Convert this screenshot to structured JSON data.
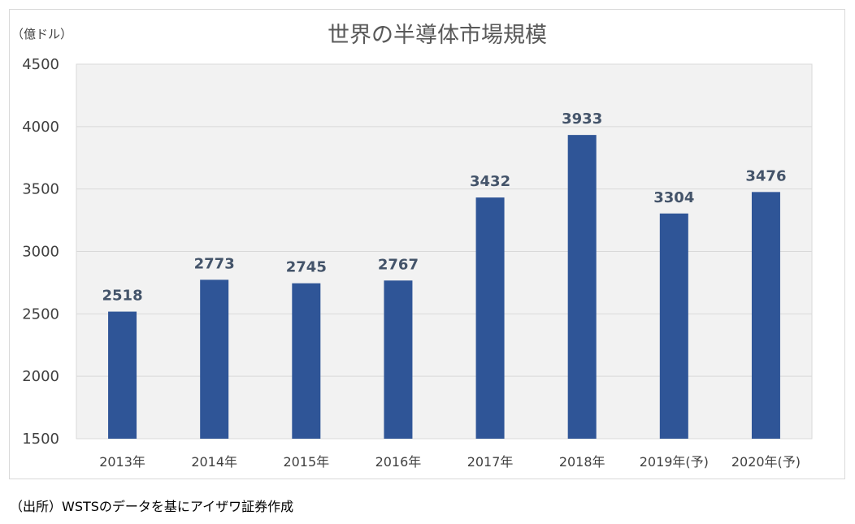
{
  "chart_data": {
    "type": "bar",
    "title": "世界の半導体市場規模",
    "unit_label": "（億ドル）",
    "categories": [
      "2013年",
      "2014年",
      "2015年",
      "2016年",
      "2017年",
      "2018年",
      "2019年(予)",
      "2020年(予)"
    ],
    "values": [
      2518,
      2773,
      2745,
      2767,
      3432,
      3933,
      3304,
      3476
    ],
    "ylim": [
      1500,
      4500
    ],
    "yticks": [
      1500,
      2000,
      2500,
      3000,
      3500,
      4000,
      4500
    ],
    "grid": true,
    "data_labels": true,
    "colors": {
      "bar": "#2F5597",
      "label": "#44546A",
      "plot_background": "#F2F2F2",
      "gridline": "#D9D9D9",
      "axis_text": "#404040",
      "title_text": "#595959"
    }
  },
  "footer": {
    "source": "（出所）WSTSのデータを基にアイザワ証券作成"
  }
}
